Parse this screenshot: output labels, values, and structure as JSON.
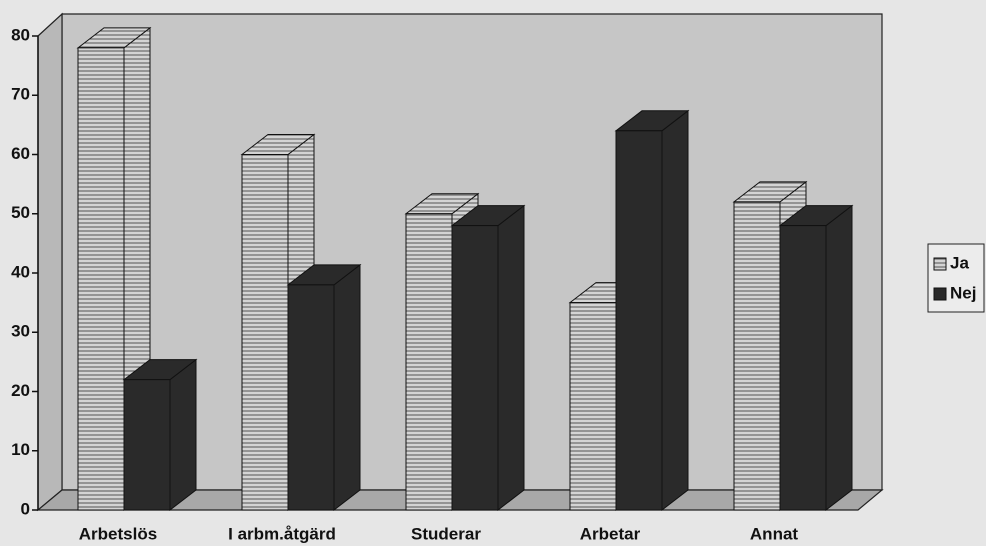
{
  "chart_data": {
    "type": "bar3d",
    "categories": [
      "Arbetslös",
      "I arbm.åtgärd",
      "Studerar",
      "Arbetar",
      "Annat"
    ],
    "series": [
      {
        "name": "Ja",
        "color": "#d4d4d4",
        "pattern": "horizontal-lines",
        "values": [
          78,
          60,
          50,
          35,
          52
        ]
      },
      {
        "name": "Nej",
        "color": "#2a2a2a",
        "values": [
          22,
          38,
          48,
          64,
          48
        ]
      }
    ],
    "ylim": [
      0,
      80
    ],
    "yticks": [
      0,
      10,
      20,
      30,
      40,
      50,
      60,
      70,
      80
    ],
    "legend": "right"
  }
}
